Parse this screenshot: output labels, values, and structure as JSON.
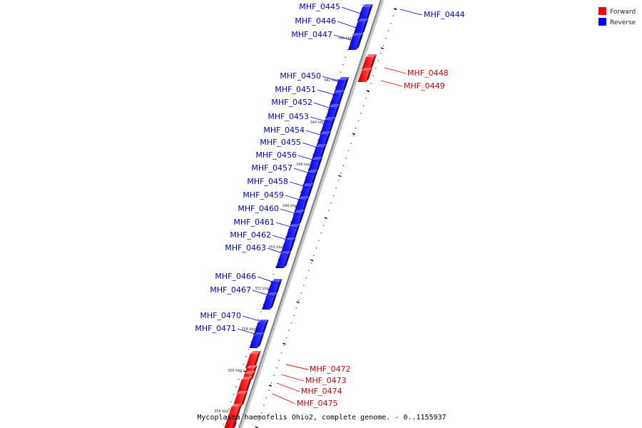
{
  "legend": {
    "items": [
      {
        "label": "Forward",
        "color": "#ff0000"
      },
      {
        "label": "Reverse",
        "color": "#0000ff"
      }
    ]
  },
  "footer": {
    "caption": "Mycoplasma haemofelis Ohio2, complete genome. - 0..1155937"
  },
  "colors": {
    "forward_fill": "#ff0000",
    "forward_text": "#cc0000",
    "reverse_fill": "#0000ff",
    "reverse_text": "#0000cc",
    "backbone": "#808080"
  },
  "tick_labels": [
    "340 kbp",
    "342 kbp",
    "344 kbp",
    "346 kbp",
    "348 kbp",
    "350 kbp",
    "352 kbp",
    "354 kbp",
    "356 kbp",
    "358 kbp"
  ],
  "genes": [
    {
      "id": "MHF_0444",
      "strand": "reverse"
    },
    {
      "id": "MHF_0445",
      "strand": "reverse"
    },
    {
      "id": "MHF_0446",
      "strand": "reverse"
    },
    {
      "id": "MHF_0447",
      "strand": "reverse"
    },
    {
      "id": "MHF_0448",
      "strand": "forward"
    },
    {
      "id": "MHF_0449",
      "strand": "forward"
    },
    {
      "id": "MHF_0450",
      "strand": "reverse"
    },
    {
      "id": "MHF_0451",
      "strand": "reverse"
    },
    {
      "id": "MHF_0452",
      "strand": "reverse"
    },
    {
      "id": "MHF_0453",
      "strand": "reverse"
    },
    {
      "id": "MHF_0454",
      "strand": "reverse"
    },
    {
      "id": "MHF_0455",
      "strand": "reverse"
    },
    {
      "id": "MHF_0456",
      "strand": "reverse"
    },
    {
      "id": "MHF_0457",
      "strand": "reverse"
    },
    {
      "id": "MHF_0458",
      "strand": "reverse"
    },
    {
      "id": "MHF_0459",
      "strand": "reverse"
    },
    {
      "id": "MHF_0460",
      "strand": "reverse"
    },
    {
      "id": "MHF_0461",
      "strand": "reverse"
    },
    {
      "id": "MHF_0462",
      "strand": "reverse"
    },
    {
      "id": "MHF_0463",
      "strand": "reverse"
    },
    {
      "id": "MHF_0466",
      "strand": "reverse"
    },
    {
      "id": "MHF_0467",
      "strand": "reverse"
    },
    {
      "id": "MHF_0470",
      "strand": "reverse"
    },
    {
      "id": "MHF_0471",
      "strand": "reverse"
    },
    {
      "id": "MHF_0472",
      "strand": "forward"
    },
    {
      "id": "MHF_0473",
      "strand": "forward"
    },
    {
      "id": "MHF_0474",
      "strand": "forward"
    },
    {
      "id": "MHF_0475",
      "strand": "forward"
    }
  ]
}
